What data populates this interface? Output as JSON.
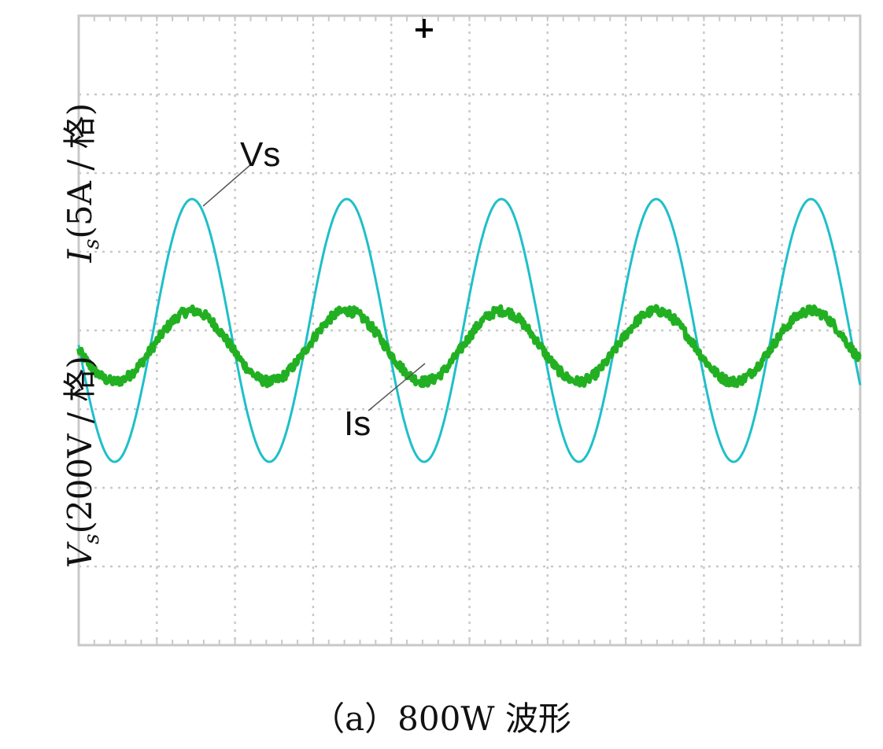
{
  "chart_data": {
    "type": "line",
    "caption": "（a）800W 波形",
    "axis_labels": {
      "is_prefix": "I",
      "is_sub": "s",
      "is_unit": "(5A / 格)",
      "vs_prefix": "V",
      "vs_sub": "s",
      "vs_unit": "(200V / 格)"
    },
    "callouts": {
      "vs": "Vs",
      "is": "Is"
    },
    "grid": {
      "x_divisions": 10,
      "y_divisions": 8,
      "style": "dotted",
      "on": true
    },
    "x": {
      "unit": "div",
      "range": [
        0,
        10
      ]
    },
    "y": {
      "unit": "div",
      "range": [
        -4,
        4
      ]
    },
    "series": [
      {
        "name": "Vs",
        "color": "#1fbfc9",
        "shape": "sine",
        "amplitude_div": 1.67,
        "offset_div": 0.0,
        "period_div": 1.98,
        "phase_peak_x_div": 1.45,
        "cycles_shown": 5
      },
      {
        "name": "Is",
        "color": "#22b022",
        "shape": "sine-noisy",
        "amplitude_div": 0.45,
        "offset_div": -0.2,
        "period_div": 1.98,
        "phase_peak_x_div": 1.45,
        "noise_div": 0.06,
        "cycles_shown": 5
      }
    ],
    "trigger_marker": {
      "x_div": 4.42
    }
  }
}
